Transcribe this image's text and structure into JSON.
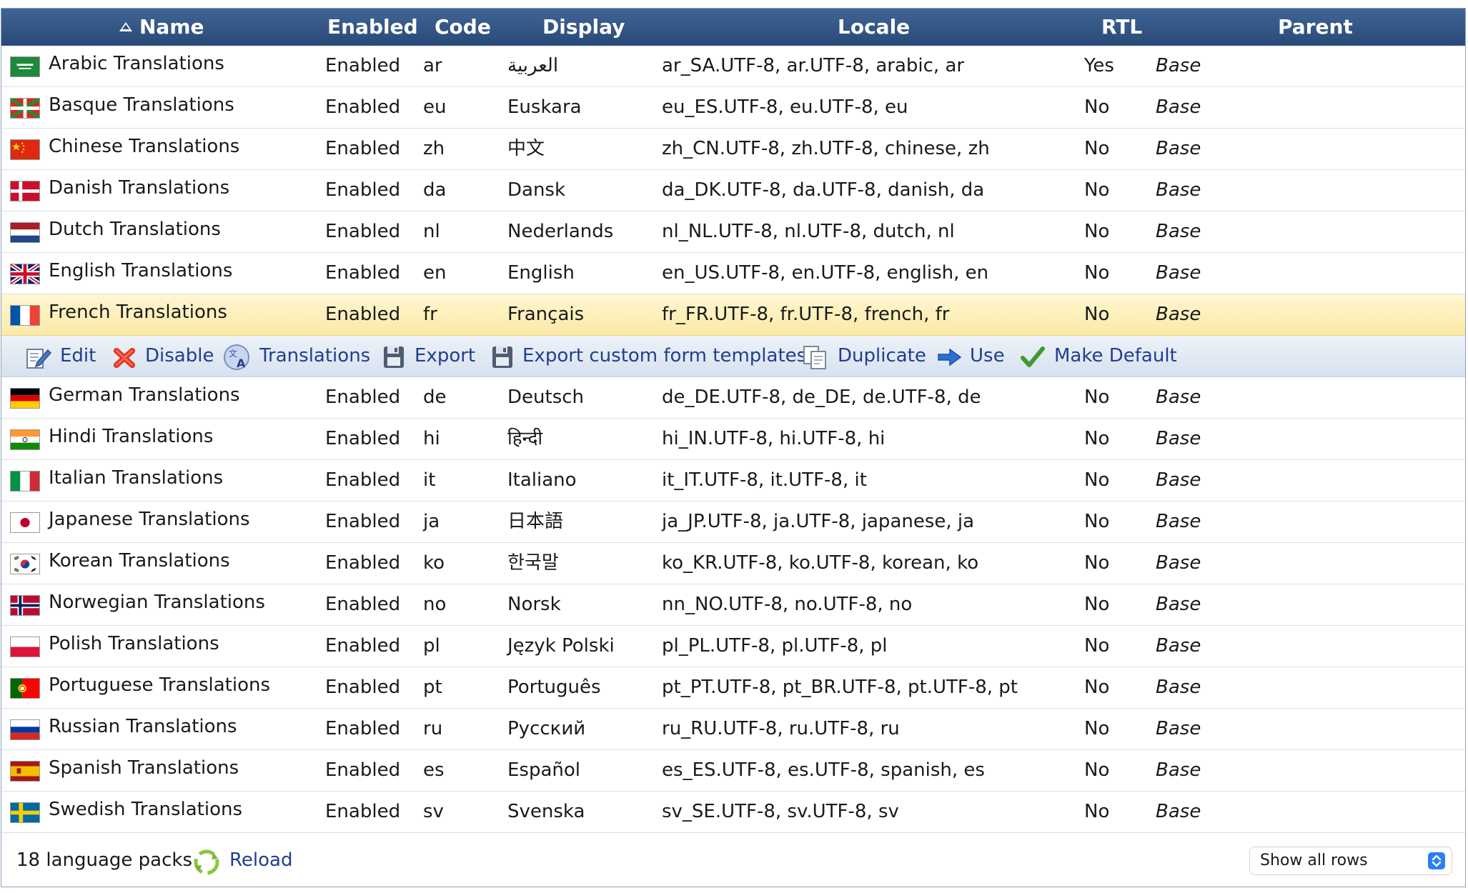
{
  "columns": {
    "name": "Name",
    "enabled": "Enabled",
    "code": "Code",
    "display": "Display",
    "locale": "Locale",
    "rtl": "RTL",
    "parent": "Parent"
  },
  "rows": [
    {
      "name": "Arabic Translations",
      "enabled": "Enabled",
      "code": "ar",
      "display": "العربية",
      "locale": "ar_SA.UTF-8, ar.UTF-8, arabic, ar",
      "rtl": "Yes",
      "parent": "Base",
      "flag": "saudi-arabia"
    },
    {
      "name": "Basque Translations",
      "enabled": "Enabled",
      "code": "eu",
      "display": "Euskara",
      "locale": "eu_ES.UTF-8, eu.UTF-8, eu",
      "rtl": "No",
      "parent": "Base",
      "flag": "basque"
    },
    {
      "name": "Chinese Translations",
      "enabled": "Enabled",
      "code": "zh",
      "display": "中文",
      "locale": "zh_CN.UTF-8, zh.UTF-8, chinese, zh",
      "rtl": "No",
      "parent": "Base",
      "flag": "china"
    },
    {
      "name": "Danish Translations",
      "enabled": "Enabled",
      "code": "da",
      "display": "Dansk",
      "locale": "da_DK.UTF-8, da.UTF-8, danish, da",
      "rtl": "No",
      "parent": "Base",
      "flag": "denmark"
    },
    {
      "name": "Dutch Translations",
      "enabled": "Enabled",
      "code": "nl",
      "display": "Nederlands",
      "locale": "nl_NL.UTF-8, nl.UTF-8, dutch, nl",
      "rtl": "No",
      "parent": "Base",
      "flag": "netherlands"
    },
    {
      "name": "English Translations",
      "enabled": "Enabled",
      "code": "en",
      "display": "English",
      "locale": "en_US.UTF-8, en.UTF-8, english, en",
      "rtl": "No",
      "parent": "Base",
      "flag": "united-kingdom"
    },
    {
      "name": "French Translations",
      "enabled": "Enabled",
      "code": "fr",
      "display": "Français",
      "locale": "fr_FR.UTF-8, fr.UTF-8, french, fr",
      "rtl": "No",
      "parent": "Base",
      "flag": "france",
      "selected": true
    },
    {
      "name": "German Translations",
      "enabled": "Enabled",
      "code": "de",
      "display": "Deutsch",
      "locale": "de_DE.UTF-8, de_DE, de.UTF-8, de",
      "rtl": "No",
      "parent": "Base",
      "flag": "germany"
    },
    {
      "name": "Hindi Translations",
      "enabled": "Enabled",
      "code": "hi",
      "display": "हिन्दी",
      "locale": "hi_IN.UTF-8, hi.UTF-8, hi",
      "rtl": "No",
      "parent": "Base",
      "flag": "india"
    },
    {
      "name": "Italian Translations",
      "enabled": "Enabled",
      "code": "it",
      "display": "Italiano",
      "locale": "it_IT.UTF-8, it.UTF-8, it",
      "rtl": "No",
      "parent": "Base",
      "flag": "italy"
    },
    {
      "name": "Japanese Translations",
      "enabled": "Enabled",
      "code": "ja",
      "display": "日本語",
      "locale": "ja_JP.UTF-8, ja.UTF-8, japanese, ja",
      "rtl": "No",
      "parent": "Base",
      "flag": "japan"
    },
    {
      "name": "Korean Translations",
      "enabled": "Enabled",
      "code": "ko",
      "display": "한국말",
      "locale": "ko_KR.UTF-8, ko.UTF-8, korean, ko",
      "rtl": "No",
      "parent": "Base",
      "flag": "south-korea"
    },
    {
      "name": "Norwegian Translations",
      "enabled": "Enabled",
      "code": "no",
      "display": "Norsk",
      "locale": "nn_NO.UTF-8, no.UTF-8, no",
      "rtl": "No",
      "parent": "Base",
      "flag": "norway"
    },
    {
      "name": "Polish Translations",
      "enabled": "Enabled",
      "code": "pl",
      "display": "Język Polski",
      "locale": "pl_PL.UTF-8, pl.UTF-8, pl",
      "rtl": "No",
      "parent": "Base",
      "flag": "poland"
    },
    {
      "name": "Portuguese Translations",
      "enabled": "Enabled",
      "code": "pt",
      "display": "Português",
      "locale": "pt_PT.UTF-8, pt_BR.UTF-8, pt.UTF-8, pt",
      "rtl": "No",
      "parent": "Base",
      "flag": "portugal"
    },
    {
      "name": "Russian Translations",
      "enabled": "Enabled",
      "code": "ru",
      "display": "Русский",
      "locale": "ru_RU.UTF-8, ru.UTF-8, ru",
      "rtl": "No",
      "parent": "Base",
      "flag": "russia"
    },
    {
      "name": "Spanish Translations",
      "enabled": "Enabled",
      "code": "es",
      "display": "Español",
      "locale": "es_ES.UTF-8, es.UTF-8, spanish, es",
      "rtl": "No",
      "parent": "Base",
      "flag": "spain"
    },
    {
      "name": "Swedish Translations",
      "enabled": "Enabled",
      "code": "sv",
      "display": "Svenska",
      "locale": "sv_SE.UTF-8, sv.UTF-8, sv",
      "rtl": "No",
      "parent": "Base",
      "flag": "sweden"
    }
  ],
  "actions": [
    {
      "label": "Edit",
      "icon": "edit-icon"
    },
    {
      "label": "Disable",
      "icon": "disable-icon"
    },
    {
      "label": "Translations",
      "icon": "translations-icon"
    },
    {
      "label": "Export",
      "icon": "save-icon"
    },
    {
      "label": "Export custom form templates",
      "icon": "save-icon"
    },
    {
      "label": "Duplicate",
      "icon": "duplicate-icon"
    },
    {
      "label": "Use",
      "icon": "arrow-right-icon"
    },
    {
      "label": "Make Default",
      "icon": "checkmark-icon"
    }
  ],
  "footer": {
    "count": "18 language packs",
    "reload": "Reload",
    "rows_select": "Show all rows"
  },
  "colors": {
    "header_top": "#3f6494",
    "header_bottom": "#294a78",
    "selected_row": "#fbe9a6",
    "action_bar": "#d7e1ee",
    "link": "#1f3f8f"
  }
}
